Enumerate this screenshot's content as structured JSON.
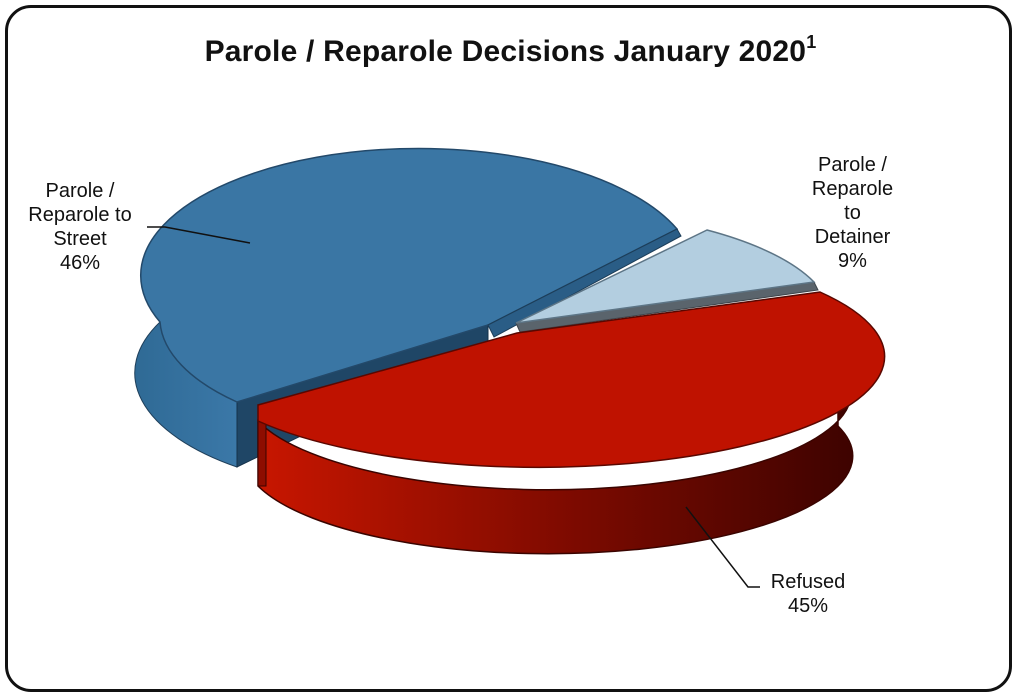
{
  "chart_data": {
    "type": "pie",
    "title": "Parole / Reparole Decisions January 2020",
    "title_superscript": "1",
    "three_d": true,
    "slices": [
      {
        "label_lines": [
          "Parole /",
          "Reparole  to",
          "Street"
        ],
        "percent_text": "46%",
        "value": 46,
        "color": "#3a76a4"
      },
      {
        "label_lines": [
          "Parole /",
          "Reparole",
          "to",
          "Detainer"
        ],
        "percent_text": "9%",
        "value": 9,
        "color": "#b3cee0"
      },
      {
        "label_lines": [
          "Refused"
        ],
        "percent_text": "45%",
        "value": 45,
        "color": "#bf1200"
      }
    ]
  }
}
